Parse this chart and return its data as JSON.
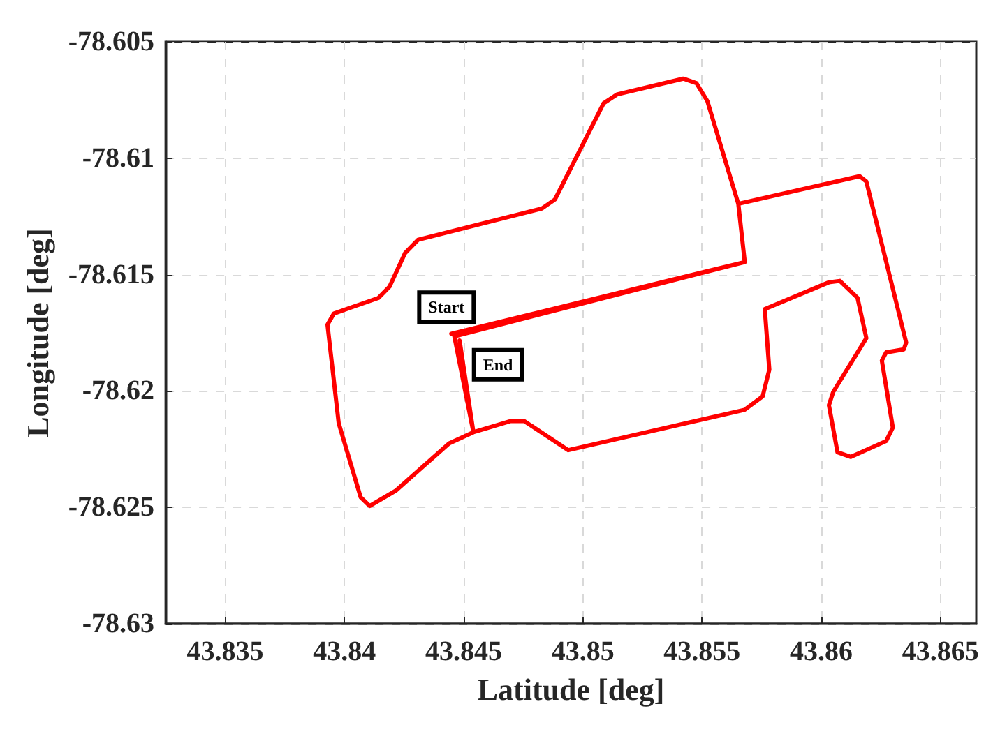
{
  "chart_data": {
    "type": "line",
    "xlabel": "Latitude [deg]",
    "ylabel": "Longitude [deg]",
    "xlim": [
      43.8325,
      43.8665
    ],
    "ylim": [
      -78.63,
      -78.605
    ],
    "xticks": [
      43.835,
      43.84,
      43.845,
      43.85,
      43.855,
      43.86,
      43.865
    ],
    "yticks": [
      -78.63,
      -78.625,
      -78.62,
      -78.615,
      -78.61,
      -78.605
    ],
    "grid": true,
    "marker": "none",
    "line_style": "solid",
    "annotations": [
      {
        "text": "Start",
        "x": 43.84428,
        "y": -78.6164
      },
      {
        "text": "End",
        "x": 43.84644,
        "y": -78.61887
      }
    ],
    "series": [
      {
        "color": "#ff0000",
        "x": [
          43.84448,
          43.85679,
          43.85652,
          43.86161,
          43.86189,
          43.86356,
          43.86346,
          43.86272,
          43.86254,
          43.863,
          43.86272,
          43.86124,
          43.86068,
          43.86032,
          43.8605,
          43.86189,
          43.86152,
          43.86078,
          43.86032,
          43.85763,
          43.85782,
          43.85754,
          43.85678,
          43.84939,
          43.84754,
          43.84698,
          43.84541,
          43.84439,
          43.84217,
          43.84106,
          43.84068,
          43.83976,
          43.83929,
          43.83956,
          43.84143,
          43.84189,
          43.84254,
          43.84309,
          43.84828,
          43.84883,
          43.85087,
          43.85143,
          43.85421,
          43.85476,
          43.85522,
          43.85652,
          43.85679,
          43.84461,
          43.84541,
          43.84483
        ],
        "values": [
          -78.61754,
          -78.61446,
          -78.61196,
          -78.61077,
          -78.611,
          -78.61792,
          -78.61821,
          -78.61834,
          -78.61869,
          -78.62157,
          -78.62215,
          -78.62283,
          -78.62263,
          -78.62061,
          -78.62004,
          -78.61773,
          -78.616,
          -78.61527,
          -78.61533,
          -78.61648,
          -78.61908,
          -78.62023,
          -78.62081,
          -78.62254,
          -78.62129,
          -78.62129,
          -78.62177,
          -78.62225,
          -78.62427,
          -78.62494,
          -78.62456,
          -78.62138,
          -78.61715,
          -78.61667,
          -78.616,
          -78.61552,
          -78.61408,
          -78.6135,
          -78.61216,
          -78.61177,
          -78.60764,
          -78.60726,
          -78.60658,
          -78.60677,
          -78.60754,
          -78.61196,
          -78.61446,
          -78.61765,
          -78.62177,
          -78.61783
        ]
      }
    ]
  }
}
